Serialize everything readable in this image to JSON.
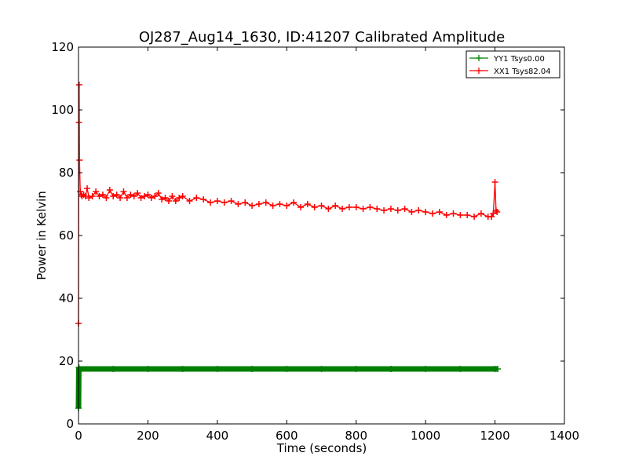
{
  "chart_data": {
    "type": "line",
    "title": "OJ287_Aug14_1630, ID:41207 Calibrated Amplitude",
    "xlabel": "Time (seconds)",
    "ylabel": "Power in Kelvin",
    "xlim": [
      0,
      1400
    ],
    "ylim": [
      0,
      120
    ],
    "xticks": [
      0,
      200,
      400,
      600,
      800,
      1000,
      1200,
      1400
    ],
    "yticks": [
      0,
      20,
      40,
      60,
      80,
      100,
      120
    ],
    "grid": false,
    "legend_position": "top-right",
    "series": [
      {
        "name": "YY1 Tsys0.00",
        "color": "#008000",
        "x": [
          0,
          1,
          2,
          3,
          100,
          200,
          300,
          400,
          500,
          600,
          700,
          800,
          900,
          1000,
          1100,
          1200,
          1208
        ],
        "y": [
          5,
          18,
          17.5,
          17.5,
          17.5,
          17.5,
          17.5,
          17.5,
          17.5,
          17.5,
          17.5,
          17.5,
          17.5,
          17.5,
          17.5,
          17.5,
          17.5
        ]
      },
      {
        "name": "XX1 Tsys82.04",
        "color": "#ff0000",
        "x": [
          0,
          1,
          2,
          3,
          5,
          8,
          10,
          15,
          20,
          25,
          30,
          40,
          50,
          60,
          70,
          80,
          90,
          100,
          110,
          120,
          130,
          140,
          150,
          160,
          170,
          180,
          190,
          200,
          210,
          220,
          230,
          240,
          250,
          260,
          270,
          280,
          290,
          300,
          320,
          340,
          360,
          380,
          400,
          420,
          440,
          460,
          480,
          500,
          520,
          540,
          560,
          580,
          600,
          620,
          640,
          660,
          680,
          700,
          720,
          740,
          760,
          780,
          800,
          820,
          840,
          860,
          880,
          900,
          920,
          940,
          960,
          980,
          1000,
          1020,
          1040,
          1060,
          1080,
          1100,
          1120,
          1140,
          1160,
          1180,
          1190,
          1195,
          1200,
          1203,
          1206
        ],
        "y": [
          32,
          96,
          108,
          84,
          74,
          73,
          72.5,
          73,
          72.5,
          75,
          72,
          72.5,
          74,
          72.5,
          73,
          72,
          74.5,
          72.5,
          73,
          72,
          74,
          72,
          73,
          72.5,
          73.5,
          72,
          72.5,
          73,
          72,
          72.5,
          73.5,
          71.5,
          72,
          71,
          72.5,
          71,
          72,
          72.5,
          71,
          72,
          71.5,
          70.5,
          71,
          70.5,
          71,
          70,
          70.5,
          69.5,
          70,
          70.5,
          69.5,
          70,
          69.5,
          70.5,
          69,
          70,
          69,
          69.5,
          68.5,
          69.5,
          68.5,
          69,
          69,
          68.5,
          69,
          68.5,
          68,
          68.5,
          68,
          68.5,
          67.5,
          68,
          67.5,
          67,
          67.5,
          66.5,
          67,
          66.5,
          66.5,
          66,
          67,
          66,
          66,
          67,
          77,
          68,
          67.5
        ]
      }
    ]
  }
}
